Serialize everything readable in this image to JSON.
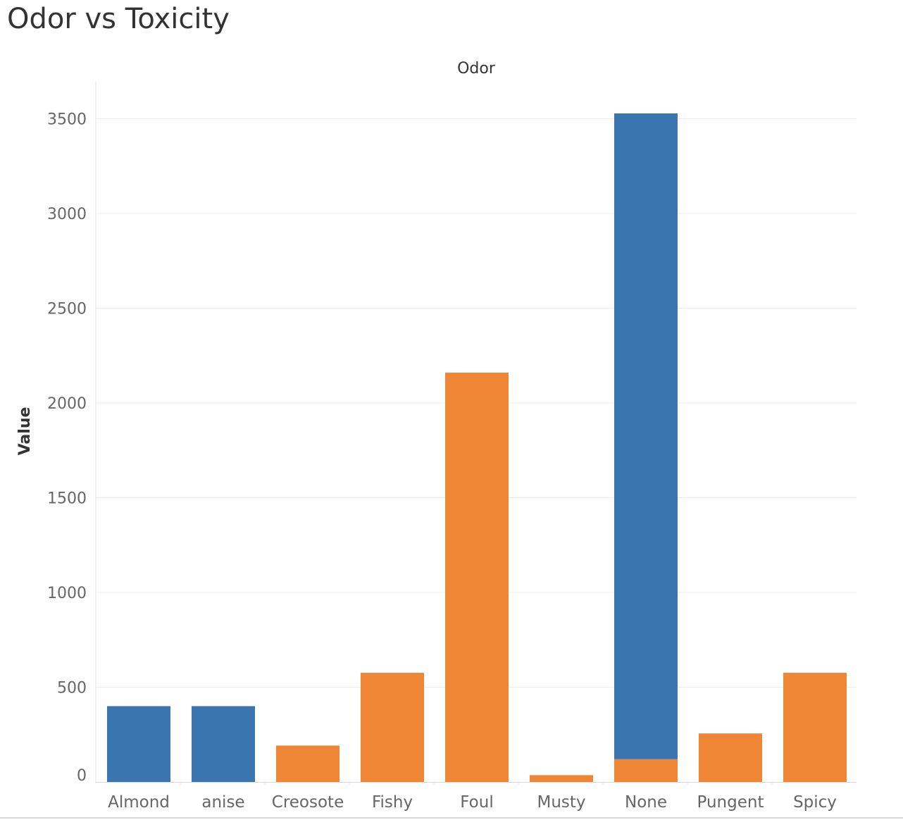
{
  "title": "Odor vs Toxicity",
  "chart_data": {
    "type": "bar",
    "stacked": true,
    "title": "Odor vs Toxicity",
    "xlabel": "Odor",
    "ylabel": "Value",
    "categories": [
      "Almond",
      "anise",
      "Creosote",
      "Fishy",
      "Foul",
      "Musty",
      "None",
      "Pungent",
      "Spicy"
    ],
    "series": [
      {
        "color": "#ef8636",
        "values": [
          0,
          0,
          192,
          576,
          2160,
          36,
          120,
          256,
          576
        ]
      },
      {
        "color": "#3b75af",
        "values": [
          400,
          400,
          0,
          0,
          0,
          0,
          3408,
          0,
          0
        ]
      }
    ],
    "yticks": [
      0,
      500,
      1000,
      1500,
      2000,
      2500,
      3000,
      3500
    ],
    "ylim": [
      0,
      3650
    ],
    "grid": true,
    "legend": false
  }
}
